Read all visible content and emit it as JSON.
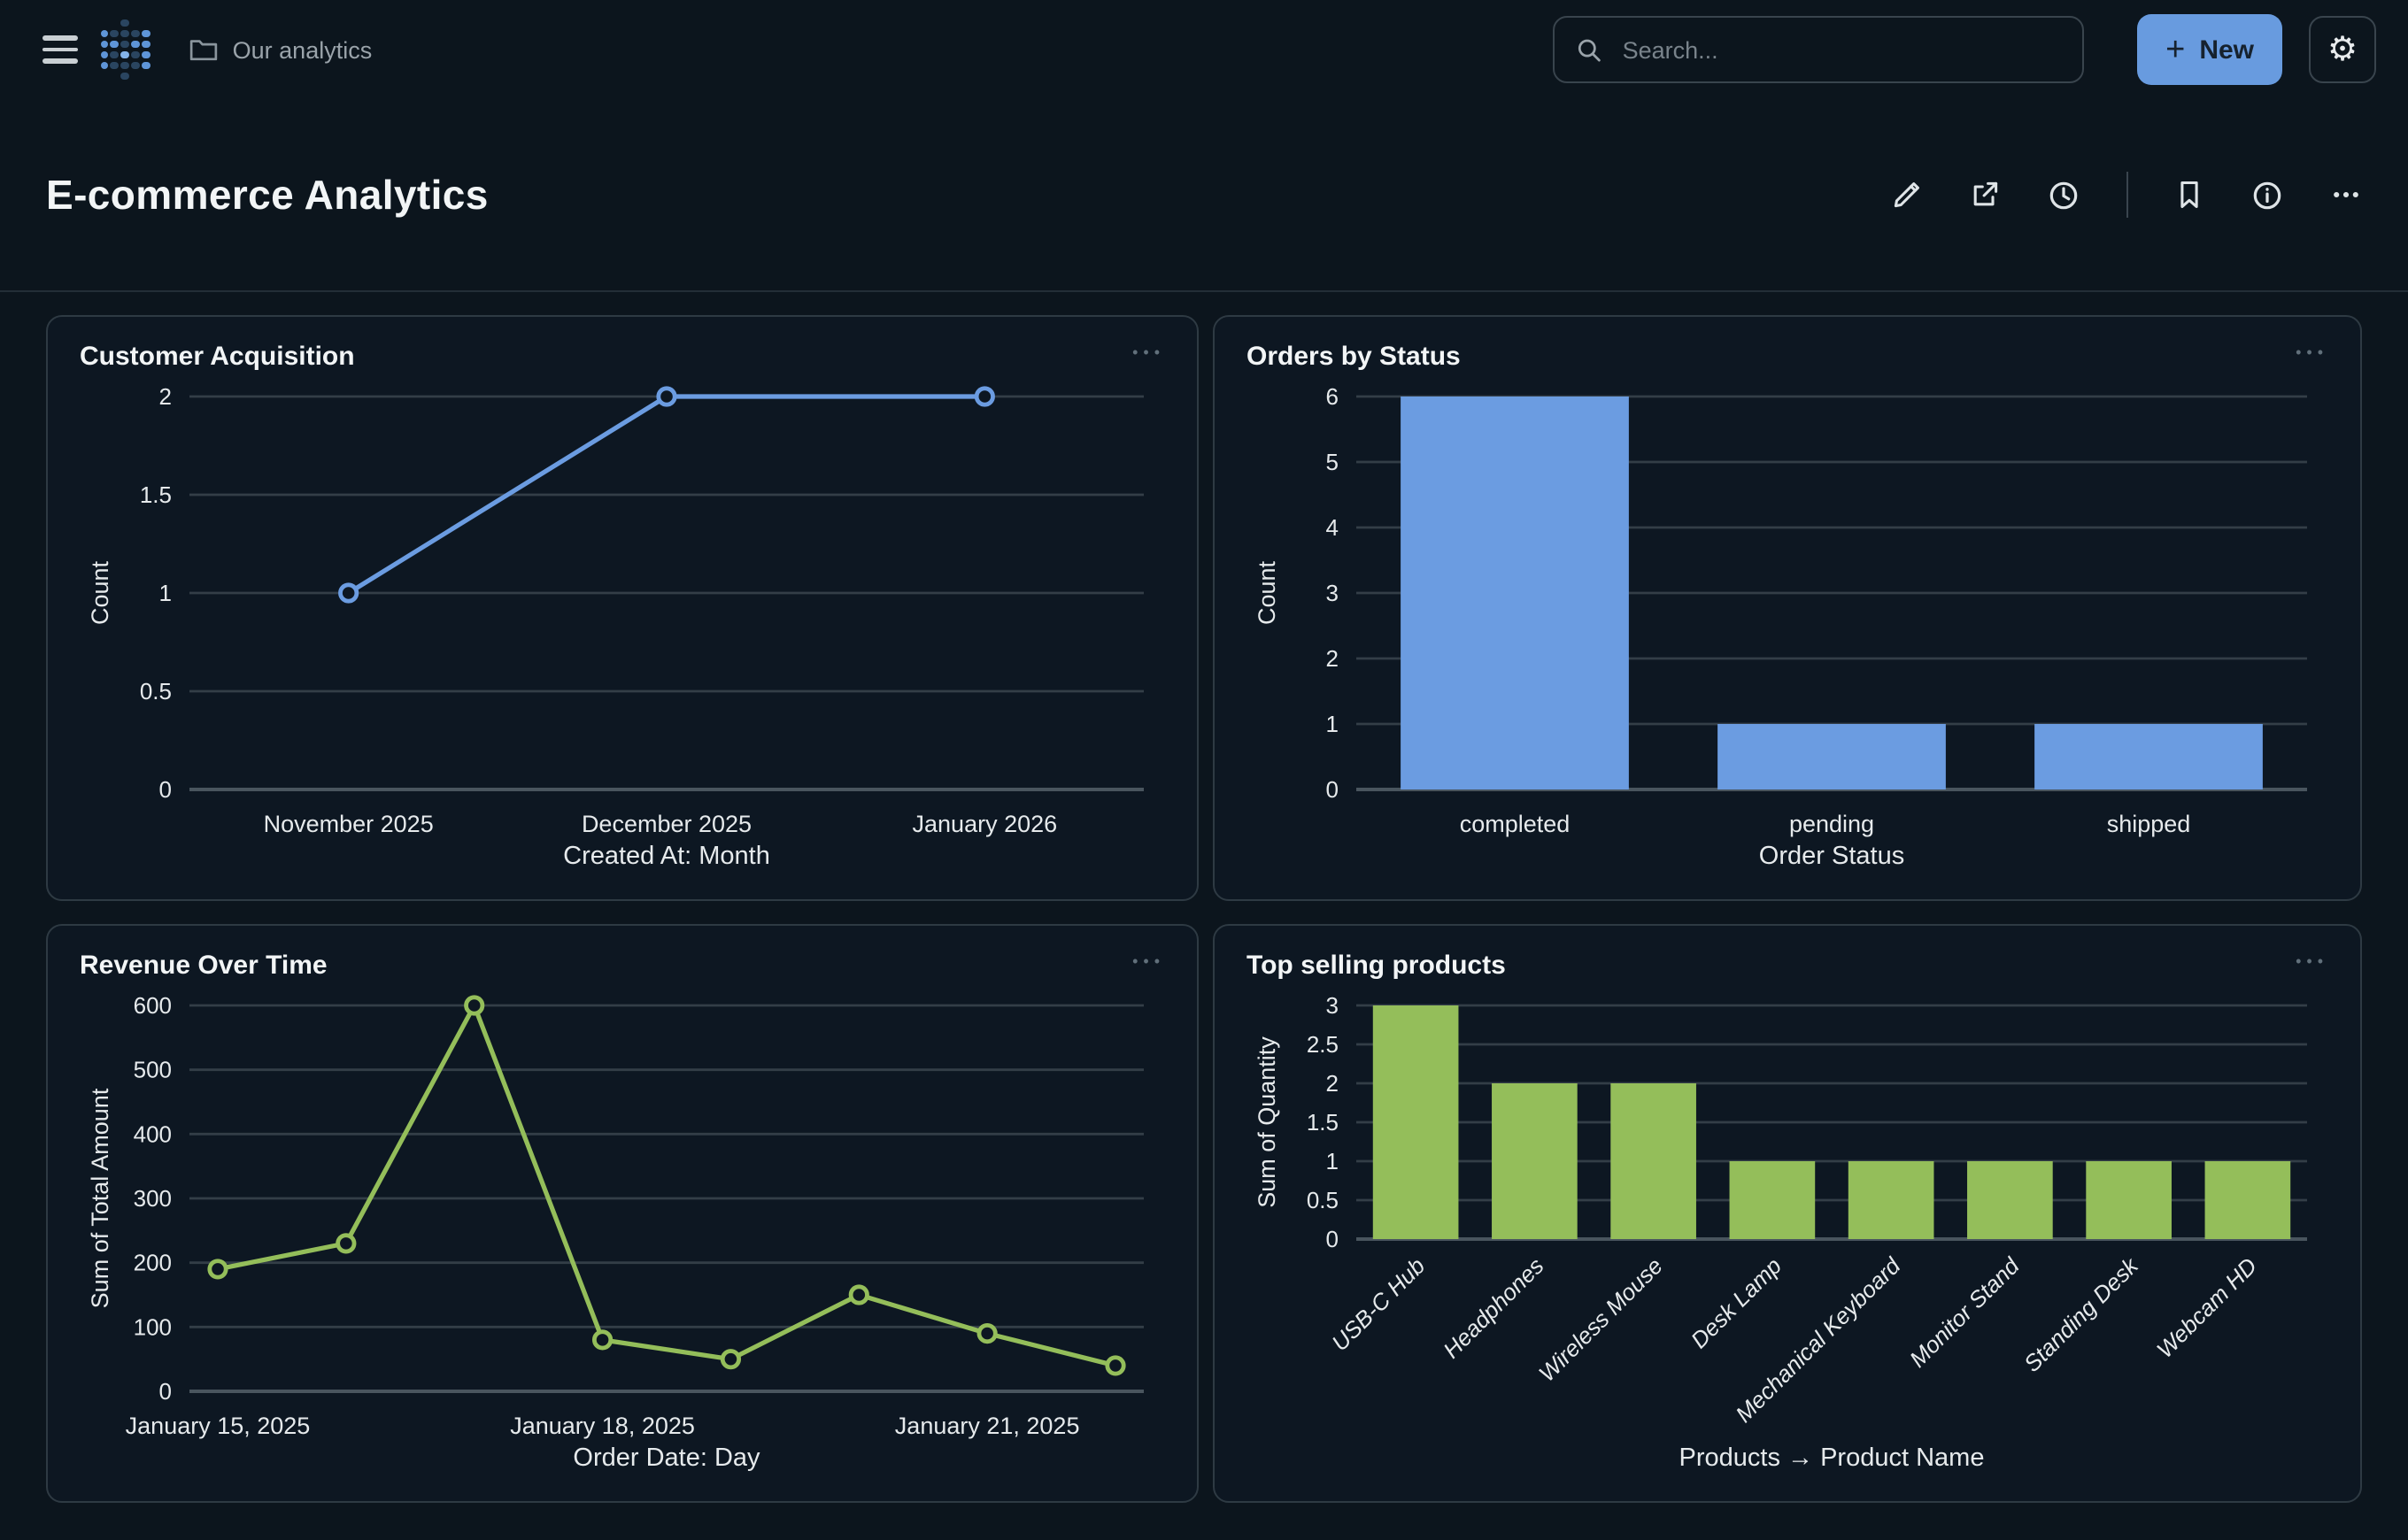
{
  "header": {
    "breadcrumb": {
      "label": "Our analytics"
    },
    "search": {
      "placeholder": "Search..."
    },
    "new_button": {
      "plus": "+",
      "label": "New"
    }
  },
  "page": {
    "title": "E-commerce Analytics"
  },
  "icons": {
    "gear": "⚙",
    "card_menu": "•••"
  },
  "colors": {
    "background": "#0C151D",
    "card_background": "#0D1722",
    "card_border": "#2E3A43",
    "grid": "#333E47",
    "grid_zero": "#49555E",
    "text_primary": "#E6EAEC",
    "text_muted": "#8A959D",
    "accent_blue": "#6B9CE1",
    "accent_green": "#94BE5A",
    "button_blue": "#689BDF"
  },
  "chart_data": [
    {
      "type": "line",
      "title": "Customer Acquisition",
      "categories": [
        "November 2025",
        "December 2025",
        "January 2026"
      ],
      "values": [
        1,
        2,
        2
      ],
      "xlabel": "Created At: Month",
      "ylabel": "Count",
      "ylim": [
        0,
        2
      ],
      "yticks": [
        0,
        0.5,
        1,
        1.5,
        2
      ],
      "color": "#6B9CE1",
      "point_style": "hollow",
      "grid": true,
      "legend": "none"
    },
    {
      "type": "bar",
      "title": "Orders by Status",
      "categories": [
        "completed",
        "pending",
        "shipped"
      ],
      "values": [
        6,
        1,
        1
      ],
      "xlabel": "Order Status",
      "ylabel": "Count",
      "ylim": [
        0,
        6
      ],
      "yticks": [
        0,
        1,
        2,
        3,
        4,
        5,
        6
      ],
      "color": "#6B9CE1",
      "grid": true,
      "legend": "none"
    },
    {
      "type": "line",
      "title": "Revenue Over Time",
      "x": [
        "January 15, 2025",
        "January 16, 2025",
        "January 17, 2025",
        "January 18, 2025",
        "January 19, 2025",
        "January 20, 2025",
        "January 21, 2025",
        "January 22, 2025"
      ],
      "values": [
        190,
        230,
        600,
        80,
        50,
        150,
        90,
        40
      ],
      "x_tick_labels_shown": [
        "January 15, 2025",
        "January 18, 2025",
        "January 21, 2025"
      ],
      "xlabel": "Order Date: Day",
      "ylabel": "Sum of Total Amount",
      "ylim": [
        0,
        600
      ],
      "yticks": [
        0,
        100,
        200,
        300,
        400,
        500,
        600
      ],
      "color": "#94BE5A",
      "point_style": "hollow",
      "grid": true,
      "legend": "none"
    },
    {
      "type": "bar",
      "title": "Top selling products",
      "categories": [
        "USB-C Hub",
        "Headphones",
        "Wireless Mouse",
        "Desk Lamp",
        "Mechanical Keyboard",
        "Monitor Stand",
        "Standing Desk",
        "Webcam HD"
      ],
      "values": [
        3,
        2,
        2,
        1,
        1,
        1,
        1,
        1
      ],
      "xlabel": "Products → Product Name",
      "ylabel": "Sum of Quantity",
      "ylim": [
        0,
        3
      ],
      "yticks": [
        0,
        0.5,
        1,
        1.5,
        2,
        2.5,
        3
      ],
      "color": "#94BE5A",
      "x_tick_rotation": -45,
      "x_tick_style": "italic",
      "grid": true,
      "legend": "none"
    }
  ]
}
